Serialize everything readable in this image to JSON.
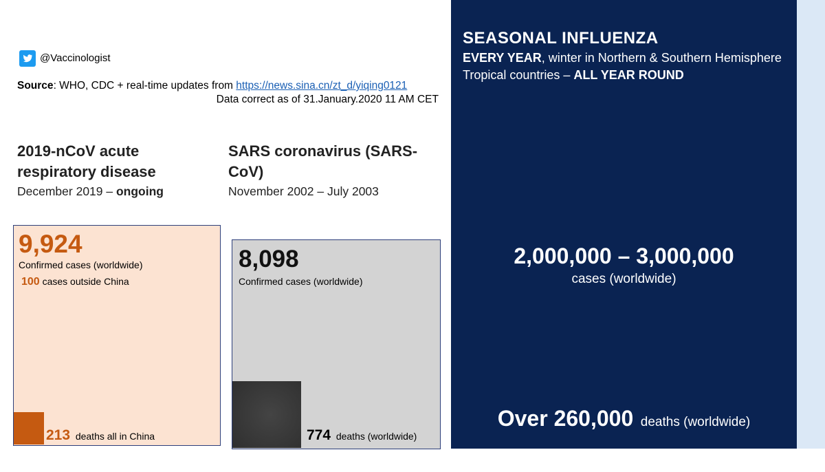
{
  "header": {
    "handle": "@Vaccinologist",
    "source_label": "Source",
    "source_text": ": WHO, CDC + real-time updates from ",
    "source_link": "https://news.sina.cn/zt_d/yiqing0121",
    "data_note": "Data correct as of 31.January.2020 11 AM CET"
  },
  "ncov": {
    "title": "2019-nCoV acute respiratory disease",
    "period_start": "December 2019 – ",
    "period_status": "ongoing",
    "cases": "9,924",
    "cases_label": "Confirmed cases (worldwide)",
    "outside_num": "100",
    "outside_label": " cases outside China",
    "deaths_num": "213",
    "deaths_label": "deaths all in China"
  },
  "sars": {
    "title": "SARS coronavirus (SARS-CoV)",
    "period": "November 2002 – July 2003",
    "cases": "8,098",
    "cases_label": "Confirmed cases (worldwide)",
    "deaths_num": "774",
    "deaths_label": "deaths (worldwide)"
  },
  "flu": {
    "title": "SEASONAL INFLUENZA",
    "line1_bold": "EVERY YEAR",
    "line1_rest": ", winter in Northern & Southern Hemisphere",
    "line2_start": "Tropical countries – ",
    "line2_bold": "ALL YEAR ROUND",
    "cases": "2,000,000 – 3,000,000",
    "cases_label": "cases (worldwide)",
    "deaths_num": "Over 260,000",
    "deaths_label": "deaths (worldwide)"
  },
  "colors": {
    "ncov_accent": "#c55a11",
    "flu_panel": "#0a2352",
    "twitter": "#1d9bf0"
  }
}
